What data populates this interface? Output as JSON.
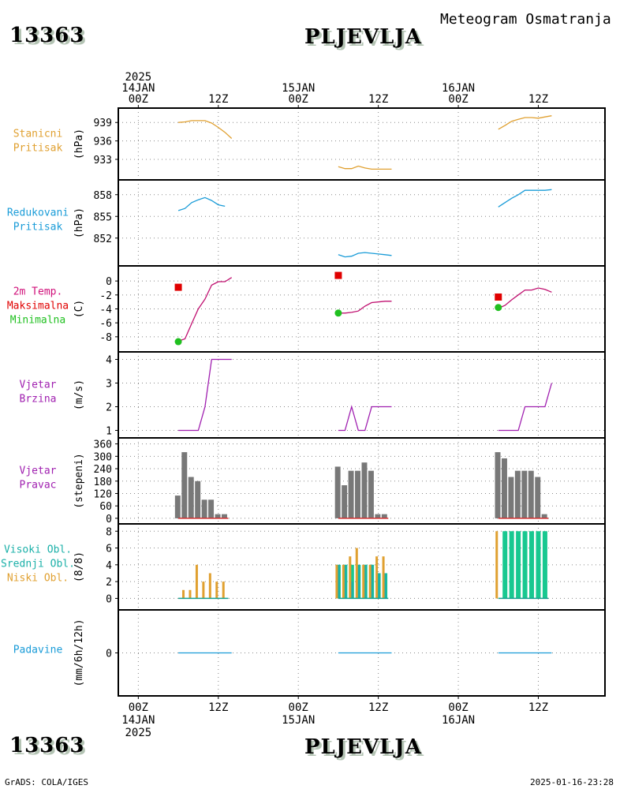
{
  "header": {
    "station_id": "13363",
    "station_name": "PLJEVLJA",
    "subtitle": "Meteogram Osmatranja"
  },
  "footer": {
    "source": "GrADS: COLA/IGES",
    "generated": "2025-01-16-23:28"
  },
  "time_axis": {
    "top": [
      {
        "lines": [
          "2025",
          "14JAN",
          "00Z"
        ]
      },
      {
        "lines": [
          "12Z"
        ]
      },
      {
        "lines": [
          "15JAN",
          "00Z"
        ]
      },
      {
        "lines": [
          "12Z"
        ]
      },
      {
        "lines": [
          "16JAN",
          "00Z"
        ]
      },
      {
        "lines": [
          "12Z"
        ]
      }
    ],
    "bottom": [
      {
        "lines": [
          "00Z",
          "14JAN",
          "2025"
        ]
      },
      {
        "lines": [
          "12Z"
        ]
      },
      {
        "lines": [
          "00Z",
          "15JAN"
        ]
      },
      {
        "lines": [
          "12Z"
        ]
      },
      {
        "lines": [
          "00Z",
          "16JAN"
        ]
      },
      {
        "lines": [
          "12Z"
        ]
      }
    ],
    "tick_hours": [
      0,
      12,
      24,
      36,
      48,
      60
    ],
    "range_hours": [
      -3,
      70
    ]
  },
  "chart_data": [
    {
      "type": "line",
      "label_lines": [
        "Stanicni",
        "Pritisak"
      ],
      "label_color": "#e0a030",
      "unit": "(hPa)",
      "ylim": [
        930.3,
        940.7
      ],
      "yticks": [
        933,
        936,
        939
      ],
      "series": [
        {
          "color": "#e0a030",
          "segments": [
            [
              [
                6,
                939.0
              ],
              [
                7,
                939.1
              ],
              [
                8,
                939.3
              ],
              [
                9,
                939.3
              ],
              [
                10,
                939.3
              ],
              [
                11,
                938.9
              ],
              [
                12,
                938.2
              ],
              [
                13,
                937.4
              ],
              [
                14,
                936.4
              ]
            ],
            [
              [
                30,
                931.8
              ],
              [
                31,
                931.5
              ],
              [
                32,
                931.5
              ],
              [
                33,
                931.9
              ],
              [
                34,
                931.6
              ],
              [
                35,
                931.4
              ],
              [
                36,
                931.4
              ],
              [
                37,
                931.4
              ],
              [
                38,
                931.4
              ]
            ],
            [
              [
                54,
                937.9
              ],
              [
                55,
                938.5
              ],
              [
                56,
                939.2
              ],
              [
                57,
                939.5
              ],
              [
                58,
                939.8
              ],
              [
                59,
                939.8
              ],
              [
                60,
                939.7
              ],
              [
                61,
                939.9
              ],
              [
                62,
                940.1
              ]
            ]
          ]
        }
      ]
    },
    {
      "type": "line",
      "label_lines": [
        "Redukovani",
        "Pritisak"
      ],
      "label_color": "#1a9cd8",
      "unit": "(hPa)",
      "ylim": [
        848.7,
        859.5
      ],
      "yticks": [
        852,
        855,
        858
      ],
      "series": [
        {
          "color": "#1a9cd8",
          "segments": [
            [
              [
                6,
                855.8
              ],
              [
                7,
                856.1
              ],
              [
                8,
                856.9
              ],
              [
                9,
                857.3
              ],
              [
                10,
                857.6
              ],
              [
                11,
                857.2
              ],
              [
                12,
                856.6
              ],
              [
                13,
                856.4
              ]
            ],
            [
              [
                30,
                849.7
              ],
              [
                31,
                849.4
              ],
              [
                32,
                849.5
              ],
              [
                33,
                849.9
              ],
              [
                34,
                850.0
              ],
              [
                35,
                849.9
              ],
              [
                36,
                849.8
              ],
              [
                37,
                849.7
              ],
              [
                38,
                849.6
              ]
            ],
            [
              [
                54,
                856.3
              ],
              [
                55,
                856.9
              ],
              [
                56,
                857.5
              ],
              [
                57,
                858.0
              ],
              [
                58,
                858.6
              ],
              [
                59,
                858.6
              ],
              [
                60,
                858.6
              ],
              [
                61,
                858.6
              ],
              [
                62,
                858.7
              ]
            ]
          ]
        }
      ]
    },
    {
      "type": "line",
      "label_lines": [
        "2m Temp.",
        "Maksimalna",
        "Minimalna"
      ],
      "label_line_colors": [
        "#d0107a",
        "#e00000",
        "#20c020"
      ],
      "unit": "(C)",
      "ylim": [
        -9.6,
        1.6
      ],
      "yticks": [
        -8,
        -6,
        -4,
        -2,
        0
      ],
      "series": [
        {
          "name": "2m Temp.",
          "color": "#c01070",
          "segments": [
            [
              [
                6,
                -8.6
              ],
              [
                7,
                -8.3
              ],
              [
                8,
                -6.1
              ],
              [
                9,
                -4.0
              ],
              [
                10,
                -2.6
              ],
              [
                11,
                -0.6
              ],
              [
                12,
                -0.1
              ],
              [
                13,
                -0.1
              ],
              [
                14,
                0.5
              ]
            ],
            [
              [
                30,
                -4.6
              ],
              [
                31,
                -4.6
              ],
              [
                32,
                -4.5
              ],
              [
                33,
                -4.3
              ],
              [
                34,
                -3.6
              ],
              [
                35,
                -3.1
              ],
              [
                36,
                -3.0
              ],
              [
                37,
                -2.9
              ],
              [
                38,
                -2.9
              ]
            ],
            [
              [
                54,
                -3.9
              ],
              [
                55,
                -3.5
              ],
              [
                56,
                -2.7
              ],
              [
                57,
                -2.0
              ],
              [
                58,
                -1.3
              ],
              [
                59,
                -1.3
              ],
              [
                60,
                -1.0
              ],
              [
                61,
                -1.2
              ],
              [
                62,
                -1.6
              ]
            ]
          ]
        }
      ],
      "max_markers": {
        "color": "#e00000",
        "points": [
          [
            6,
            -0.9
          ],
          [
            30,
            0.8
          ],
          [
            54,
            -2.3
          ]
        ]
      },
      "min_markers": {
        "color": "#20c020",
        "points": [
          [
            6,
            -8.7
          ],
          [
            30,
            -4.6
          ],
          [
            54,
            -3.8
          ]
        ]
      }
    },
    {
      "type": "line",
      "label_lines": [
        "Vjetar",
        "Brzina"
      ],
      "label_color": "#a020b0",
      "unit": "(m/s)",
      "ylim": [
        0.85,
        4.15
      ],
      "yticks": [
        1,
        2,
        3,
        4
      ],
      "series": [
        {
          "color": "#a020b0",
          "segments": [
            [
              [
                6,
                1
              ],
              [
                8,
                1
              ],
              [
                9,
                1
              ],
              [
                10,
                2
              ],
              [
                11,
                4
              ],
              [
                12,
                4
              ],
              [
                13,
                4
              ],
              [
                14,
                4
              ]
            ],
            [
              [
                30,
                1
              ],
              [
                31,
                1
              ],
              [
                32,
                2
              ],
              [
                33,
                1
              ],
              [
                34,
                1
              ],
              [
                35,
                2
              ],
              [
                36,
                2
              ],
              [
                37,
                2
              ],
              [
                38,
                2
              ]
            ],
            [
              [
                54,
                1
              ],
              [
                55,
                1
              ],
              [
                56,
                1
              ],
              [
                57,
                1
              ],
              [
                58,
                2
              ],
              [
                59,
                2
              ],
              [
                60,
                2
              ],
              [
                61,
                2
              ],
              [
                62,
                3
              ]
            ]
          ]
        }
      ]
    },
    {
      "type": "bar",
      "label_lines": [
        "Vjetar",
        "Pravac"
      ],
      "label_color": "#a020b0",
      "unit": "(stepeni)",
      "ylim": [
        -8,
        370
      ],
      "yticks": [
        0,
        60,
        120,
        180,
        240,
        300,
        360
      ],
      "bar_color": "#787878",
      "bars": [
        [
          [
            6,
            110
          ],
          [
            7,
            320
          ],
          [
            8,
            200
          ],
          [
            9,
            180
          ],
          [
            10,
            90
          ],
          [
            11,
            90
          ],
          [
            12,
            20
          ],
          [
            13,
            20
          ]
        ],
        [
          [
            30,
            250
          ],
          [
            31,
            160
          ],
          [
            32,
            230
          ],
          [
            33,
            230
          ],
          [
            34,
            270
          ],
          [
            35,
            230
          ],
          [
            36,
            20
          ],
          [
            37,
            20
          ]
        ],
        [
          [
            54,
            320
          ],
          [
            55,
            290
          ],
          [
            56,
            200
          ],
          [
            57,
            230
          ],
          [
            58,
            230
          ],
          [
            59,
            230
          ],
          [
            60,
            200
          ],
          [
            61,
            20
          ]
        ]
      ],
      "baseline_segments": [
        [
          6,
          13.5
        ],
        [
          30,
          37.5
        ],
        [
          54,
          61.5
        ]
      ],
      "baseline_color": "#d03030"
    },
    {
      "type": "bar",
      "label_lines": [
        "Visoki Obl.",
        "Srednji Obl.",
        "Niski Obl."
      ],
      "label_line_colors": [
        "#1ab0a8",
        "#1ab0a8",
        "#e0a030"
      ],
      "unit": "(8/8)",
      "ylim": [
        -0.9,
        8.4
      ],
      "yticks": [
        0,
        2,
        4,
        6,
        8
      ],
      "series": [
        {
          "name": "Visoki Obl.",
          "color": "#18c890",
          "width": 6,
          "offset": 0,
          "bars": [
            [
              30,
              4
            ],
            [
              31,
              4
            ],
            [
              32,
              4
            ],
            [
              33,
              4
            ],
            [
              34,
              4
            ],
            [
              35,
              4
            ],
            [
              36,
              3
            ],
            [
              37,
              3
            ],
            [
              55,
              8
            ],
            [
              56,
              8
            ],
            [
              57,
              8
            ],
            [
              58,
              8
            ],
            [
              59,
              8
            ],
            [
              60,
              8
            ],
            [
              61,
              8
            ]
          ]
        },
        {
          "name": "Srednji Obl.",
          "color": "#1ab0a8",
          "width": 4,
          "offset": 0,
          "bars": [
            [
              30,
              4
            ],
            [
              31,
              4
            ],
            [
              32,
              2
            ],
            [
              33,
              4
            ],
            [
              34,
              4
            ],
            [
              35,
              4
            ],
            [
              36,
              3
            ],
            [
              37,
              3
            ]
          ]
        },
        {
          "name": "Niski Obl.",
          "color": "#e0a030",
          "width": 3,
          "offset": -1,
          "bars": [
            [
              7,
              1
            ],
            [
              8,
              1
            ],
            [
              9,
              4
            ],
            [
              10,
              2
            ],
            [
              11,
              3
            ],
            [
              12,
              2
            ],
            [
              13,
              2
            ],
            [
              30,
              4
            ],
            [
              31,
              4
            ],
            [
              32,
              5
            ],
            [
              33,
              6
            ],
            [
              34,
              4
            ],
            [
              35,
              4
            ],
            [
              36,
              5
            ],
            [
              37,
              5
            ],
            [
              54,
              8
            ]
          ]
        }
      ],
      "baseline_segments": [
        [
          6,
          13.5
        ],
        [
          30,
          37.5
        ],
        [
          54,
          61.5
        ]
      ],
      "baseline_color": "#18a090"
    },
    {
      "type": "line",
      "label_lines": [
        "Padavine"
      ],
      "label_color": "#1a9cd8",
      "unit": "(mm/6h/12h)",
      "ylim": [
        -1,
        1
      ],
      "yticks": [
        0
      ],
      "series": [
        {
          "color": "#1a9cd8",
          "segments": [
            [
              [
                6,
                0
              ],
              [
                7,
                0
              ],
              [
                8,
                0
              ],
              [
                9,
                0
              ],
              [
                10,
                0
              ],
              [
                11,
                0
              ],
              [
                12,
                0
              ],
              [
                13,
                0
              ],
              [
                14,
                0
              ]
            ],
            [
              [
                30,
                0
              ],
              [
                31,
                0
              ],
              [
                32,
                0
              ],
              [
                33,
                0
              ],
              [
                34,
                0
              ],
              [
                35,
                0
              ],
              [
                36,
                0
              ],
              [
                37,
                0
              ],
              [
                38,
                0
              ]
            ],
            [
              [
                54,
                0
              ],
              [
                55,
                0
              ],
              [
                56,
                0
              ],
              [
                57,
                0
              ],
              [
                58,
                0
              ],
              [
                59,
                0
              ],
              [
                60,
                0
              ],
              [
                61,
                0
              ],
              [
                62,
                0
              ]
            ]
          ]
        }
      ]
    }
  ]
}
